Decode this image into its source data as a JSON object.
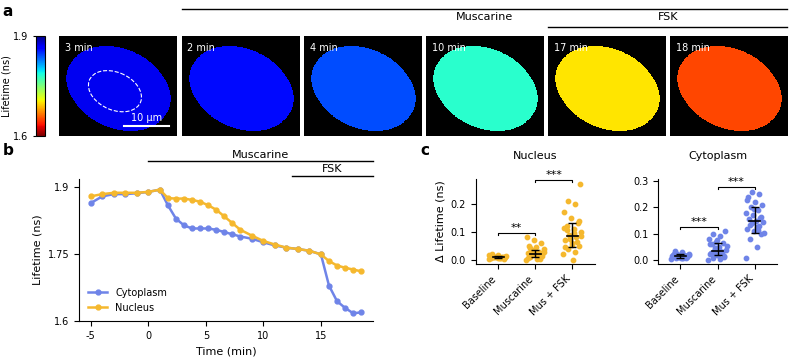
{
  "panel_a": {
    "panel_label": "a",
    "colorbar": {
      "label": "Lifetime (ns)",
      "range": [
        1.6,
        1.9
      ],
      "ticks": [
        1.6,
        1.9
      ]
    },
    "frames": [
      {
        "label": "3 min",
        "mean_lifetime": 1.87
      },
      {
        "label": "2 min",
        "mean_lifetime": 1.86
      },
      {
        "label": "4 min",
        "mean_lifetime": 1.84
      },
      {
        "label": "10 min",
        "mean_lifetime": 1.78
      },
      {
        "label": "17 min",
        "mean_lifetime": 1.7
      },
      {
        "label": "18 min",
        "mean_lifetime": 1.65
      }
    ],
    "scale_bar": "10 μm",
    "bars": [
      {
        "text": "Muscarine",
        "frames": [
          1,
          5
        ]
      },
      {
        "text": "FSK",
        "frames": [
          4,
          5
        ]
      }
    ]
  },
  "chart_data": [
    {
      "type": "line",
      "panel_label": "b",
      "xlabel": "Time (min)",
      "ylabel": "Lifetime (ns)",
      "xlim": [
        -6,
        19.5
      ],
      "xticks": [
        -5,
        0,
        5,
        10,
        15
      ],
      "ylim": [
        1.6,
        1.92
      ],
      "yticks": [
        1.6,
        1.75,
        1.9
      ],
      "legend": "lower left",
      "x": [
        -5,
        -4,
        -3,
        -2,
        -1,
        0,
        1,
        1.7,
        2.4,
        3.1,
        3.8,
        4.5,
        5.2,
        5.9,
        6.6,
        7.3,
        8,
        9,
        10,
        11,
        12,
        13,
        14,
        15,
        15.7,
        16.4,
        17.1,
        17.8,
        18.5
      ],
      "series": [
        {
          "name": "Cytoplasm",
          "color": "#6f84e8",
          "marker": "o",
          "values": [
            1.865,
            1.88,
            1.885,
            1.885,
            1.887,
            1.89,
            1.895,
            1.86,
            1.83,
            1.815,
            1.808,
            1.808,
            1.808,
            1.805,
            1.8,
            1.795,
            1.79,
            1.785,
            1.777,
            1.77,
            1.765,
            1.762,
            1.758,
            1.75,
            1.68,
            1.645,
            1.63,
            1.618,
            1.62
          ]
        },
        {
          "name": "Nucleus",
          "color": "#f5b82e",
          "marker": "o",
          "values": [
            1.88,
            1.885,
            1.888,
            1.888,
            1.888,
            1.89,
            1.895,
            1.876,
            1.875,
            1.875,
            1.872,
            1.868,
            1.86,
            1.85,
            1.835,
            1.82,
            1.805,
            1.792,
            1.78,
            1.772,
            1.765,
            1.762,
            1.758,
            1.75,
            1.735,
            1.725,
            1.72,
            1.716,
            1.712
          ]
        }
      ],
      "annotations": [
        {
          "text": "Muscarine",
          "x": [
            0,
            19.5
          ]
        },
        {
          "text": "FSK",
          "x": [
            12.5,
            19.5
          ]
        }
      ]
    },
    {
      "type": "scatter",
      "panel_label": "c",
      "title": "Nucleus",
      "ylabel": "Δ Lifetime (ns)",
      "color": "#f5b82e",
      "categories": [
        "Baseline",
        "Muscarine",
        "Mus + FSK"
      ],
      "ylim": [
        -0.015,
        0.29
      ],
      "yticks": [
        {
          "value": 0,
          "label": "0.0"
        },
        0.1,
        0.2
      ],
      "values": [
        [
          0.005,
          0.008,
          0.01,
          0.012,
          0.006,
          0.015,
          0.009,
          0.011,
          0.013,
          0.007,
          0.02,
          0.004,
          0.01,
          0.016,
          0.008,
          0.012,
          0.009,
          0.018,
          0.006,
          0.011
        ],
        [
          0.0,
          0.005,
          0.01,
          0.015,
          0.02,
          0.025,
          0.03,
          0.035,
          0.04,
          0.045,
          0.05,
          0.06,
          0.07,
          0.08,
          0.012,
          0.018,
          0.022,
          0.028,
          0.008,
          0.003,
          0.033,
          0.027,
          0.016,
          0.041
        ],
        [
          0.02,
          0.03,
          0.04,
          0.05,
          0.06,
          0.07,
          0.08,
          0.09,
          0.1,
          0.11,
          0.12,
          0.13,
          0.15,
          0.17,
          0.2,
          0.21,
          0.27,
          0.0,
          0.045,
          0.065,
          0.075,
          0.085,
          0.095,
          0.105,
          0.14,
          0.055,
          0.115
        ]
      ],
      "median": [
        0.01,
        0.022,
        0.085
      ],
      "iqr": [
        [
          0.007,
          0.013
        ],
        [
          0.012,
          0.035
        ],
        [
          0.045,
          0.13
        ]
      ],
      "significance": [
        {
          "between": [
            0,
            1
          ],
          "label": "**"
        },
        {
          "between": [
            1,
            2
          ],
          "label": "***"
        }
      ]
    },
    {
      "type": "scatter",
      "title": "Cytoplasm",
      "color": "#6f84e8",
      "categories": [
        "Baseline",
        "Muscarine",
        "Mus + FSK"
      ],
      "ylim": [
        -0.015,
        0.31
      ],
      "yticks": [
        {
          "value": 0,
          "label": "0.0"
        },
        0.1,
        0.2,
        0.3
      ],
      "values": [
        [
          0.005,
          0.008,
          0.01,
          0.012,
          0.015,
          0.018,
          0.02,
          0.022,
          0.025,
          0.03,
          0.035,
          0.009,
          0.013,
          0.016,
          0.011,
          0.014,
          0.019,
          0.007,
          0.024,
          0.017,
          0.012,
          0.021,
          0.01,
          0.028
        ],
        [
          0.0,
          0.005,
          0.01,
          0.015,
          0.02,
          0.025,
          0.03,
          0.035,
          0.04,
          0.05,
          0.06,
          0.065,
          0.07,
          0.08,
          0.09,
          0.1,
          0.11,
          0.018,
          0.028,
          0.033,
          0.045,
          0.055,
          0.038,
          0.022,
          0.012,
          0.075,
          0.062
        ],
        [
          0.01,
          0.05,
          0.08,
          0.1,
          0.11,
          0.12,
          0.13,
          0.14,
          0.145,
          0.15,
          0.155,
          0.16,
          0.17,
          0.18,
          0.19,
          0.2,
          0.21,
          0.22,
          0.24,
          0.25,
          0.26,
          0.105,
          0.125,
          0.135,
          0.165,
          0.195,
          0.23,
          0.115
        ]
      ],
      "median": [
        0.015,
        0.035,
        0.15
      ],
      "iqr": [
        [
          0.01,
          0.022
        ],
        [
          0.02,
          0.065
        ],
        [
          0.105,
          0.2
        ]
      ],
      "significance": [
        {
          "between": [
            0,
            1
          ],
          "label": "***"
        },
        {
          "between": [
            1,
            2
          ],
          "label": "***"
        }
      ]
    }
  ]
}
